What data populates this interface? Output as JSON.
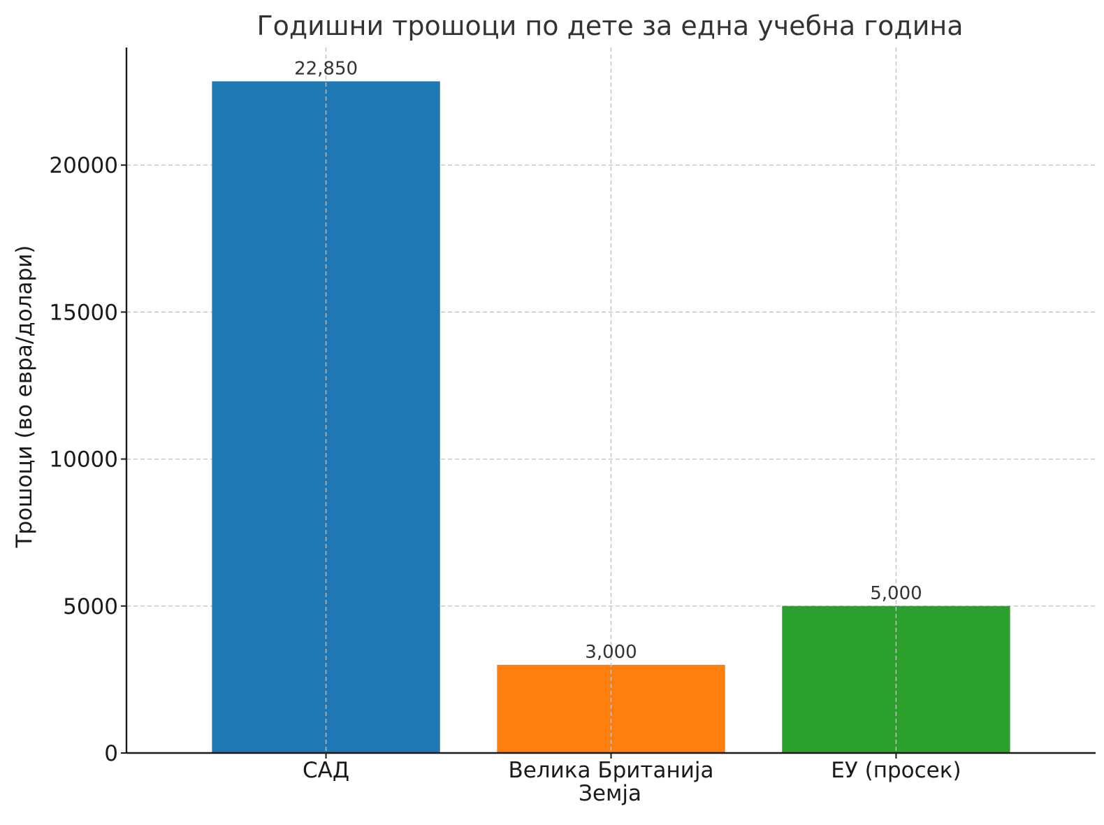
{
  "chart_data": {
    "type": "bar",
    "title": "Годишни трошоци по дете за една учебна година",
    "xlabel": "Земја",
    "ylabel": "Трошоци (во евра/долари)",
    "categories": [
      "САД",
      "Велика Британија",
      "ЕУ (просек)"
    ],
    "values": [
      22850,
      3000,
      5000
    ],
    "data_labels": [
      "22,850",
      "3,000",
      "5,000"
    ],
    "colors": [
      "#1f77b4",
      "#ff7f0e",
      "#2ca02c"
    ],
    "ylim": [
      0,
      24000
    ],
    "yticks": [
      0,
      5000,
      10000,
      15000,
      20000
    ],
    "ytick_labels": [
      "0",
      "5000",
      "10000",
      "15000",
      "20000"
    ],
    "grid": true,
    "legend": false
  }
}
